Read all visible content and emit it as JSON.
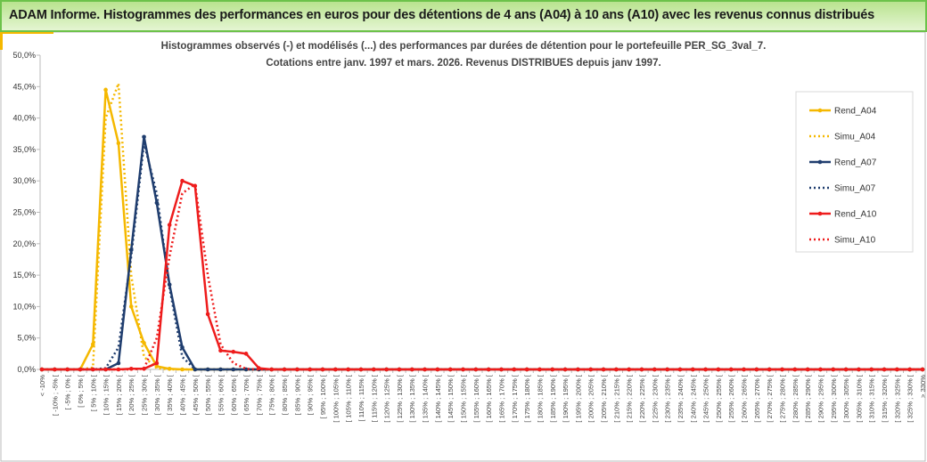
{
  "header": {
    "title": "ADAM Informe. Histogrammes des performances en euros pour des détentions de 4 ans (A04) à 10 ans (A10) avec les revenus connus distribués"
  },
  "chart_data": {
    "type": "line",
    "title": "Histogrammes observés (-) et modélisés (...) des performances par durées de détention pour le portefeuille PER_SG_3val_7.",
    "subtitle": "Cotations entre janv. 1997 et mars. 2026. Revenus DISTRIBUES depuis janv 1997.",
    "categories": [
      "< -10%",
      "[ -10% ; -5% [",
      "[ -5% ; 0% [",
      "[ 0% ; 5% [",
      "[ 5% ; 10% [",
      "[ 10% ; 15% [",
      "[ 15% ; 20% [",
      "[ 20% ; 25% [",
      "[ 25% ; 30% [",
      "[ 30% ; 35% [",
      "[ 35% ; 40% [",
      "[ 40% ; 45% [",
      "[ 45% ; 50% [",
      "[ 50% ; 55% [",
      "[ 55% ; 60% [",
      "[ 60% ; 65% [",
      "[ 65% ; 70% [",
      "[ 70% ; 75% [",
      "[ 75% ; 80% [",
      "[ 80% ; 85% [",
      "[ 85% ; 90% [",
      "[ 90% ; 95% [",
      "[ 95% ; 100% [",
      "[ 100% ; 105% [",
      "[ 105% ; 110% [",
      "[ 110% ; 115% [",
      "[ 115% ; 120% [",
      "[ 120% ; 125% [",
      "[ 125% ; 130% [",
      "[ 130% ; 135% [",
      "[ 135% ; 140% [",
      "[ 140% ; 145% [",
      "[ 145% ; 150% [",
      "[ 150% ; 155% [",
      "[ 155% ; 160% [",
      "[ 160% ; 165% [",
      "[ 165% ; 170% [",
      "[ 170% ; 175% [",
      "[ 175% ; 180% [",
      "[ 180% ; 185% [",
      "[ 185% ; 190% [",
      "[ 190% ; 195% [",
      "[ 195% ; 200% [",
      "[ 200% ; 205% [",
      "[ 205% ; 210% [",
      "[ 210% ; 215% [",
      "[ 215% ; 220% [",
      "[ 220% ; 225% [",
      "[ 225% ; 230% [",
      "[ 230% ; 235% [",
      "[ 235% ; 240% [",
      "[ 240% ; 245% [",
      "[ 245% ; 250% [",
      "[ 250% ; 255% [",
      "[ 255% ; 260% [",
      "[ 260% ; 265% [",
      "[ 265% ; 270% [",
      "[ 270% ; 275% [",
      "[ 275% ; 280% [",
      "[ 280% ; 285% [",
      "[ 285% ; 290% [",
      "[ 290% ; 295% [",
      "[ 295% ; 300% [",
      "[ 300% ; 305% [",
      "[ 305% ; 310% [",
      "[ 310% ; 315% [",
      "[ 315% ; 320% [",
      "[ 320% ; 325% [",
      "[ 325% ; 330% [",
      "> 330%"
    ],
    "series": [
      {
        "name": "Rend_A04",
        "color": "#f5b800",
        "style": "solid",
        "values": [
          0,
          0,
          0,
          0,
          4,
          44.5,
          36,
          10,
          4.2,
          0.5,
          0.1,
          0,
          0,
          0,
          0,
          0,
          0,
          0,
          0,
          0,
          0,
          0,
          0,
          0,
          0,
          0,
          0,
          0,
          0,
          0,
          0,
          0,
          0,
          0,
          0,
          0,
          0,
          0,
          0,
          0,
          0,
          0,
          0,
          0,
          0,
          0,
          0,
          0,
          0,
          0,
          0,
          0,
          0,
          0,
          0,
          0,
          0,
          0,
          0,
          0,
          0,
          0,
          0,
          0,
          0,
          0,
          0,
          0,
          0,
          0
        ]
      },
      {
        "name": "Simu_A04",
        "color": "#f5b800",
        "style": "dotted",
        "values": [
          0,
          0,
          0,
          0,
          0.3,
          40,
          45.5,
          15,
          2,
          0.2,
          0,
          0,
          0,
          0,
          0,
          0,
          0,
          0,
          0,
          0,
          0,
          0,
          0,
          0,
          0,
          0,
          0,
          0,
          0,
          0,
          0,
          0,
          0,
          0,
          0,
          0,
          0,
          0,
          0,
          0,
          0,
          0,
          0,
          0,
          0,
          0,
          0,
          0,
          0,
          0,
          0,
          0,
          0,
          0,
          0,
          0,
          0,
          0,
          0,
          0,
          0,
          0,
          0,
          0,
          0,
          0,
          0,
          0,
          0,
          0
        ]
      },
      {
        "name": "Rend_A07",
        "color": "#1f3d6e",
        "style": "solid",
        "values": [
          0,
          0,
          0,
          0,
          0,
          0,
          1,
          19,
          37,
          26.5,
          13.5,
          3.5,
          0,
          0,
          0,
          0,
          0,
          0,
          0,
          0,
          0,
          0,
          0,
          0,
          0,
          0,
          0,
          0,
          0,
          0,
          0,
          0,
          0,
          0,
          0,
          0,
          0,
          0,
          0,
          0,
          0,
          0,
          0,
          0,
          0,
          0,
          0,
          0,
          0,
          0,
          0,
          0,
          0,
          0,
          0,
          0,
          0,
          0,
          0,
          0,
          0,
          0,
          0,
          0,
          0,
          0,
          0,
          0,
          0,
          0
        ]
      },
      {
        "name": "Simu_A07",
        "color": "#1f3d6e",
        "style": "dotted",
        "values": [
          0,
          0,
          0,
          0,
          0,
          0.2,
          3.5,
          18,
          36,
          28,
          13,
          2,
          0,
          0,
          0,
          0,
          0,
          0,
          0,
          0,
          0,
          0,
          0,
          0,
          0,
          0,
          0,
          0,
          0,
          0,
          0,
          0,
          0,
          0,
          0,
          0,
          0,
          0,
          0,
          0,
          0,
          0,
          0,
          0,
          0,
          0,
          0,
          0,
          0,
          0,
          0,
          0,
          0,
          0,
          0,
          0,
          0,
          0,
          0,
          0,
          0,
          0,
          0,
          0,
          0,
          0,
          0,
          0,
          0,
          0
        ]
      },
      {
        "name": "Rend_A10",
        "color": "#ee1c1c",
        "style": "solid",
        "values": [
          0,
          0,
          0,
          0,
          0,
          0,
          0,
          0.1,
          0.1,
          1,
          23,
          30,
          29.2,
          8.8,
          3,
          2.8,
          2.5,
          0.2,
          0,
          0,
          0,
          0,
          0,
          0,
          0,
          0,
          0,
          0,
          0,
          0,
          0,
          0,
          0,
          0,
          0,
          0,
          0,
          0,
          0,
          0,
          0,
          0,
          0,
          0,
          0,
          0,
          0,
          0,
          0,
          0,
          0,
          0,
          0,
          0,
          0,
          0,
          0,
          0,
          0,
          0,
          0,
          0,
          0,
          0,
          0,
          0,
          0,
          0,
          0,
          0
        ]
      },
      {
        "name": "Simu_A10",
        "color": "#ee1c1c",
        "style": "dotted",
        "values": [
          0,
          0,
          0,
          0,
          0,
          0,
          0,
          0,
          0.1,
          5,
          18,
          28,
          29.5,
          15,
          4,
          1,
          0.1,
          0,
          0,
          0,
          0,
          0,
          0,
          0,
          0,
          0,
          0,
          0,
          0,
          0,
          0,
          0,
          0,
          0,
          0,
          0,
          0,
          0,
          0,
          0,
          0,
          0,
          0,
          0,
          0,
          0,
          0,
          0,
          0,
          0,
          0,
          0,
          0,
          0,
          0,
          0,
          0,
          0,
          0,
          0,
          0,
          0,
          0,
          0,
          0,
          0,
          0,
          0,
          0,
          0
        ]
      }
    ],
    "ylim": [
      0,
      50
    ],
    "yticks": [
      {
        "value": 0,
        "label": "0,0%"
      },
      {
        "value": 5,
        "label": "5,0%"
      },
      {
        "value": 10,
        "label": "10,0%"
      },
      {
        "value": 15,
        "label": "15,0%"
      },
      {
        "value": 20,
        "label": "20,0%"
      },
      {
        "value": 25,
        "label": "25,0%"
      },
      {
        "value": 30,
        "label": "30,0%"
      },
      {
        "value": 35,
        "label": "35,0%"
      },
      {
        "value": 40,
        "label": "40,0%"
      },
      {
        "value": 45,
        "label": "45,0%"
      },
      {
        "value": 50,
        "label": "50,0%"
      }
    ],
    "grid": false,
    "legend": "right"
  }
}
